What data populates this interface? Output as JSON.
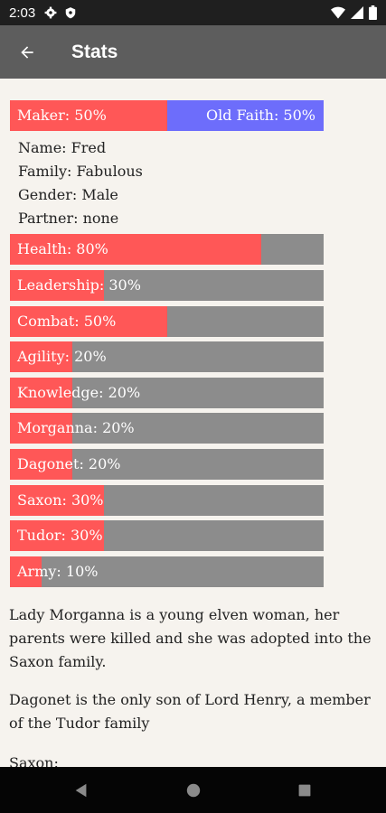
{
  "status_bar": {
    "time": "2:03",
    "icons": [
      "settings-icon",
      "shield-icon",
      "wifi-icon",
      "signal-icon",
      "battery-icon"
    ]
  },
  "app_bar": {
    "title": "Stats",
    "back_icon": "arrow-back-icon"
  },
  "faith": {
    "left_label": "Maker: 50%",
    "right_label": "Old Faith: 50%",
    "left_fraction": 0.5,
    "left_color": "#ff5757",
    "right_color": "#6d6dfb"
  },
  "info": {
    "name": "Name: Fred",
    "family": "Family: Fabulous",
    "gender": "Gender: Male",
    "partner": "Partner: none"
  },
  "stats": [
    {
      "label": "Health: 80%",
      "fraction": 0.8
    },
    {
      "label": "Leadership: 30%",
      "fraction": 0.3
    },
    {
      "label": "Combat: 50%",
      "fraction": 0.5
    },
    {
      "label": "Agility: 20%",
      "fraction": 0.2
    },
    {
      "label": "Knowledge: 20%",
      "fraction": 0.2
    },
    {
      "label": "Morganna: 20%",
      "fraction": 0.2
    },
    {
      "label": "Dagonet: 20%",
      "fraction": 0.2
    },
    {
      "label": "Saxon: 30%",
      "fraction": 0.3
    },
    {
      "label": "Tudor: 30%",
      "fraction": 0.3
    },
    {
      "label": "Army: 10%",
      "fraction": 0.1
    }
  ],
  "colors": {
    "fill": "#ff5757",
    "track": "#8c8c8c",
    "app_bar": "#5d5d5d",
    "background": "#f6f3ee"
  },
  "paragraphs": {
    "morganna": "Lady Morganna is a young elven woman, her parents were killed and she was adopted into the Saxon family.",
    "dagonet": "Dagonet is the only son of Lord Henry, a member of the Tudor family",
    "saxon": "Saxon:"
  },
  "nav": {
    "back": "nav-back-icon",
    "home": "nav-home-icon",
    "recents": "nav-recents-icon"
  }
}
